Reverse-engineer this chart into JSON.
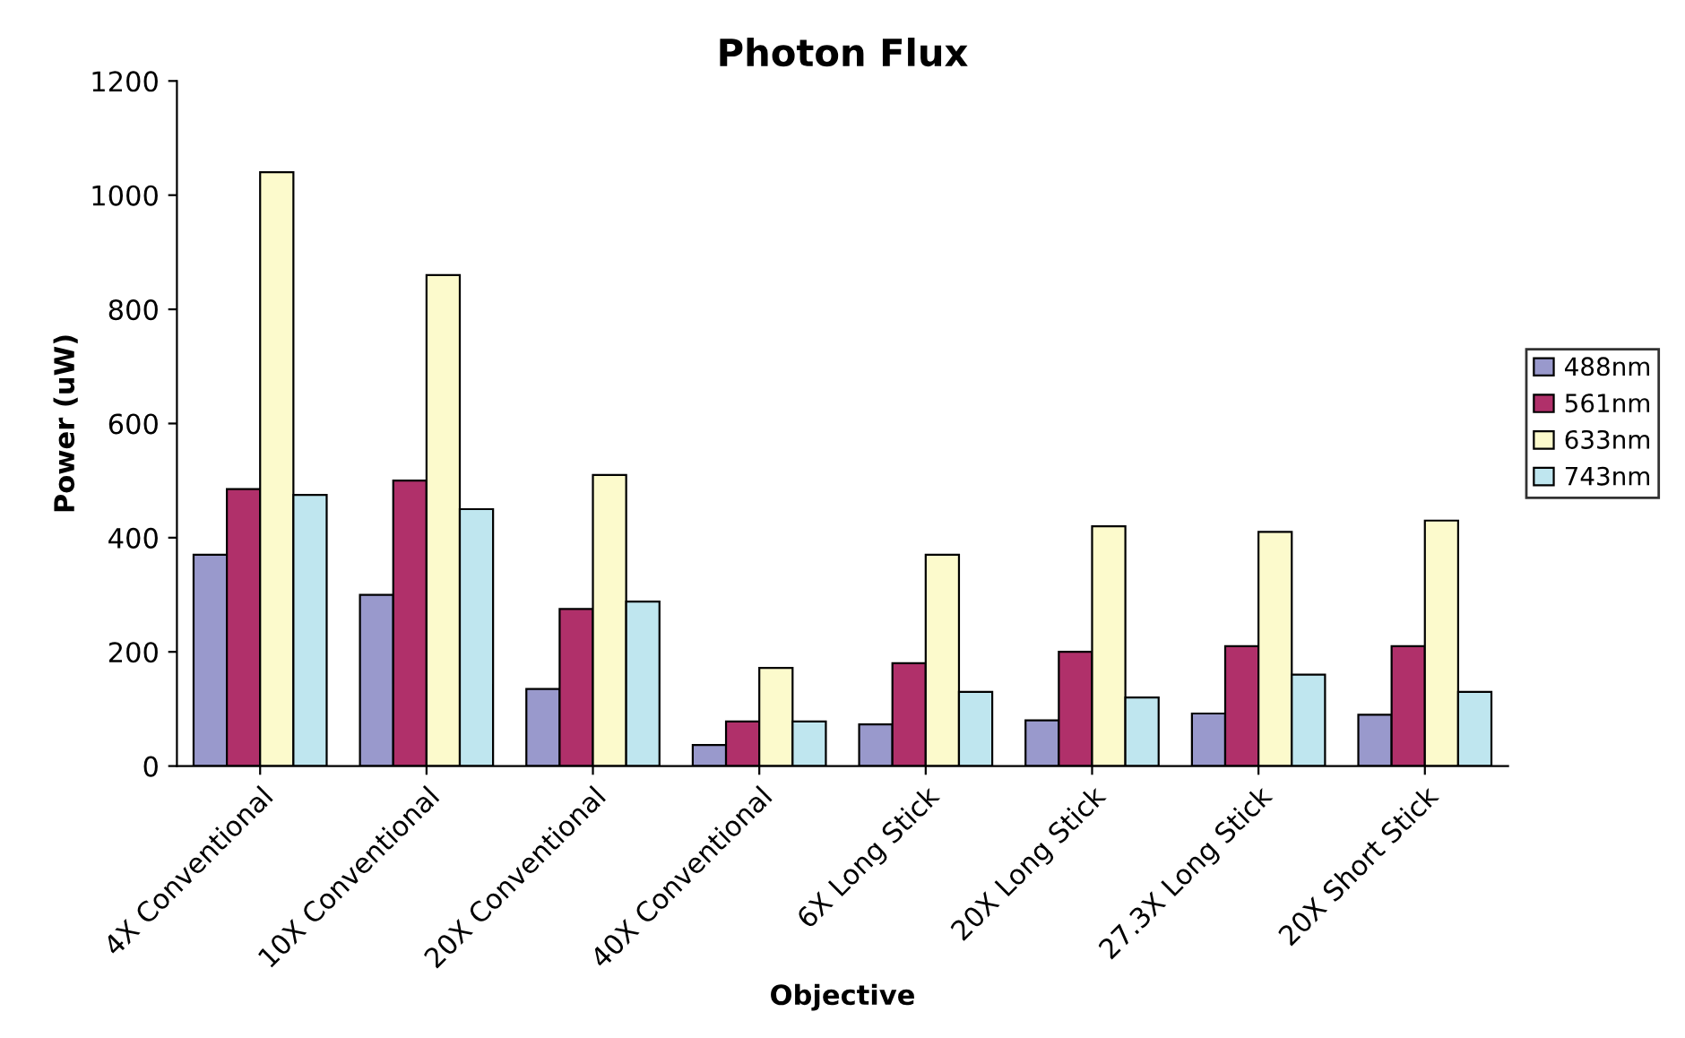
{
  "chart_data": {
    "type": "bar",
    "title": "Photon Flux",
    "xlabel": "Objective",
    "ylabel": "Power (uW)",
    "categories": [
      "4X Conventional",
      "10X Conventional",
      "20X Conventional",
      "40X Conventional",
      "6X Long Stick",
      "20X Long Stick",
      "27.3X Long Stick",
      "20X Short Stick"
    ],
    "series": [
      {
        "name": "488nm",
        "color": "#9999cc",
        "values": [
          370,
          300,
          135,
          37,
          73,
          80,
          92,
          90
        ]
      },
      {
        "name": "561nm",
        "color": "#b0306a",
        "values": [
          485,
          500,
          275,
          78,
          180,
          200,
          210,
          210
        ]
      },
      {
        "name": "633nm",
        "color": "#fcfacc",
        "values": [
          1040,
          860,
          510,
          172,
          370,
          420,
          410,
          430
        ]
      },
      {
        "name": "743nm",
        "color": "#bfe6ef",
        "values": [
          475,
          450,
          288,
          78,
          130,
          120,
          160,
          130
        ]
      }
    ],
    "ylim": [
      0,
      1200
    ],
    "yticks": [
      0,
      200,
      400,
      600,
      800,
      1000,
      1200
    ],
    "grid": false,
    "legend": "right"
  }
}
